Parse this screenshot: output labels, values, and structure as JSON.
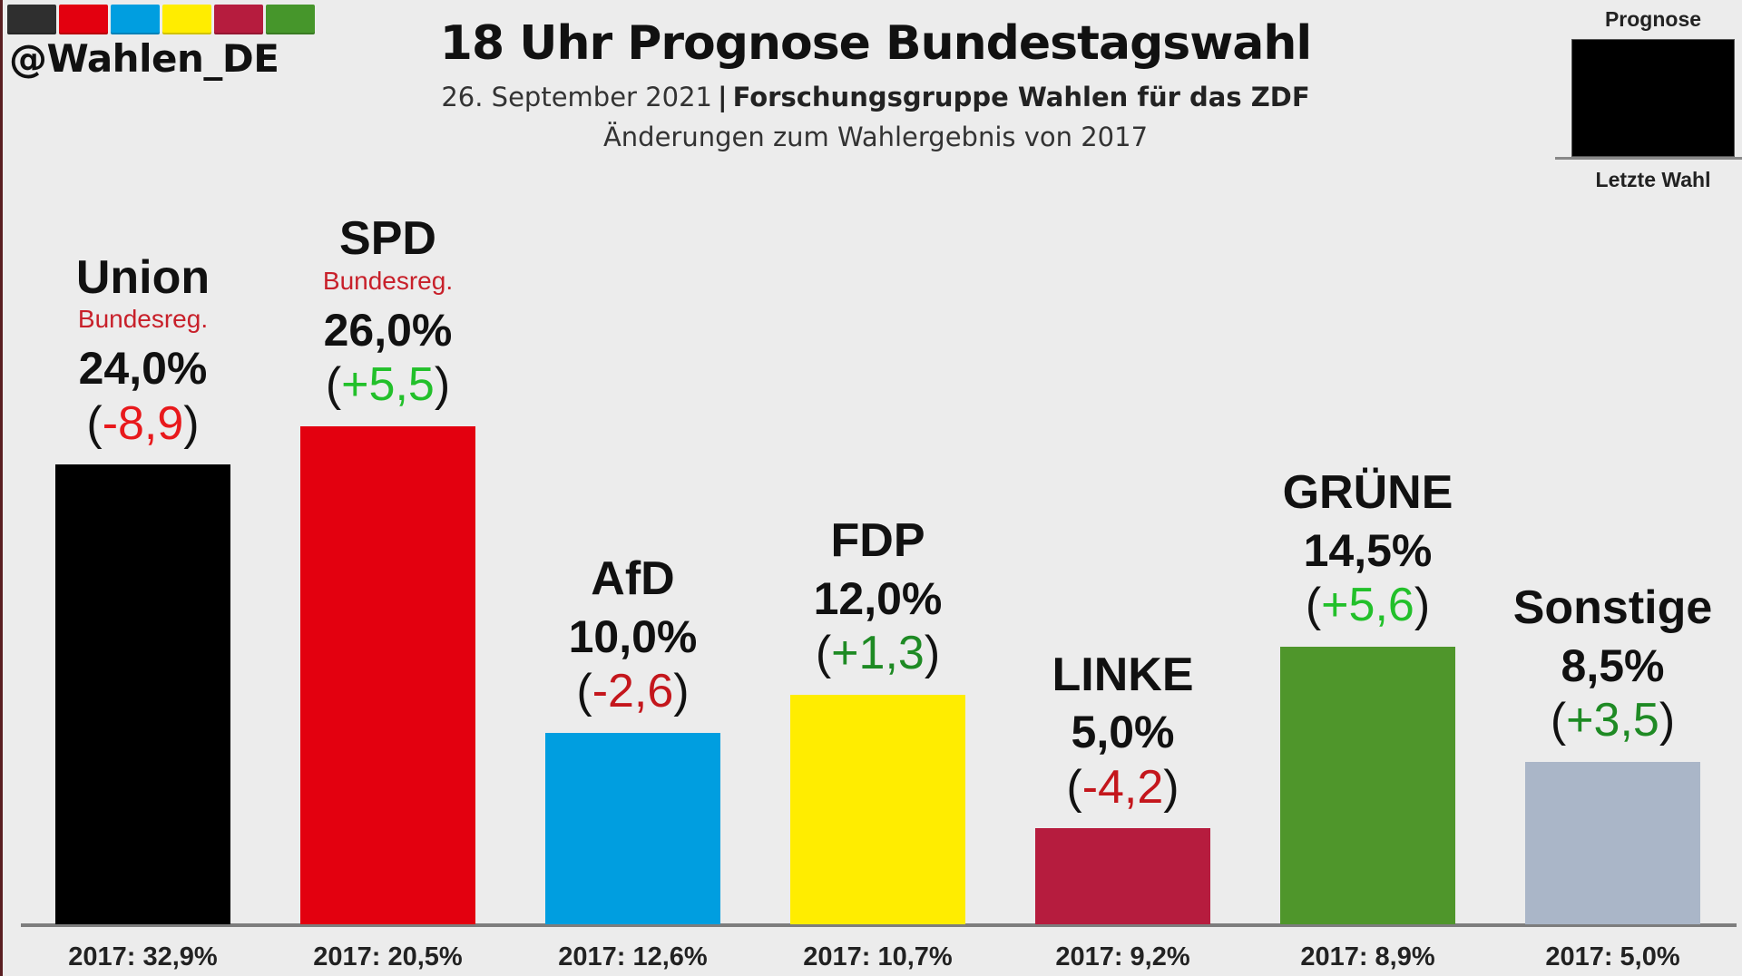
{
  "header": {
    "handle": "@Wahlen_DE",
    "title": "18 Uhr Prognose Bundestagswahl",
    "date": "26. September 2021",
    "separator": "|",
    "source": "Forschungsgruppe Wahlen für das ZDF",
    "subtitle": "Änderungen zum Wahlergebnis von 2017",
    "swatch_colors": [
      "#2f2f2f",
      "#e3000f",
      "#009ee0",
      "#ffed00",
      "#b61c3e",
      "#46962b"
    ]
  },
  "legend": {
    "top_label": "Prognose",
    "bottom_label": "Letzte Wahl"
  },
  "chart_data": {
    "type": "bar",
    "title": "18 Uhr Prognose Bundestagswahl",
    "subtitle": "Änderungen zum Wahlergebnis von 2017",
    "xlabel": "",
    "ylabel": "",
    "ylim": [
      0,
      26
    ],
    "grid": false,
    "legend": "top-right",
    "unit": "%",
    "categories": [
      "Union",
      "SPD",
      "AfD",
      "FDP",
      "LINKE",
      "GRÜNE",
      "Sonstige"
    ],
    "values": [
      24.0,
      26.0,
      10.0,
      12.0,
      5.0,
      14.5,
      8.5
    ],
    "value_labels": [
      "24,0%",
      "26,0%",
      "10,0%",
      "12,0%",
      "5,0%",
      "14,5%",
      "8,5%"
    ],
    "changes": [
      -8.9,
      5.5,
      -2.6,
      1.3,
      -4.2,
      5.6,
      3.5
    ],
    "change_labels": [
      "-8,9",
      "+5,5",
      "-2,6",
      "+1,3",
      "-4,2",
      "+5,6",
      "+3,5"
    ],
    "previous_values": [
      32.9,
      20.5,
      12.6,
      10.7,
      9.2,
      8.9,
      5.0
    ],
    "previous_labels": [
      "2017: 32,9%",
      "2017: 20,5%",
      "2017: 12,6%",
      "2017: 10,7%",
      "2017: 9,2%",
      "2017: 8,9%",
      "2017: 5,0%"
    ],
    "government_note": [
      "Bundesreg.",
      "Bundesreg.",
      "",
      "",
      "",
      "",
      ""
    ],
    "colors": [
      "#000000",
      "#e3000f",
      "#009ee0",
      "#ffed00",
      "#b61c3e",
      "#4f962b",
      "#aab6c8"
    ],
    "change_colors": [
      "#e8191c",
      "#22c02a",
      "#c4161c",
      "#1e8a24",
      "#c4161c",
      "#22c02a",
      "#1e8a24"
    ]
  }
}
